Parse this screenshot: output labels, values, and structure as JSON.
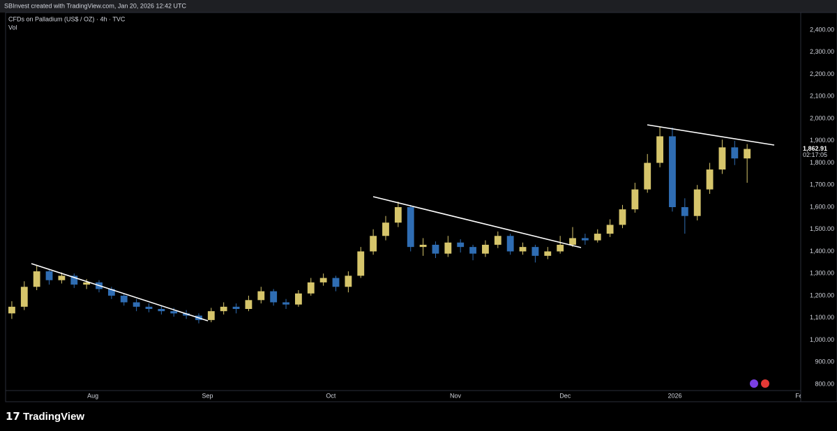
{
  "header": "SBInvest created with TradingView.com, Jan 20, 2026 12:42 UTC",
  "footer": {
    "brand": "TradingView"
  },
  "chart_data": {
    "type": "candlestick",
    "title": "CFDs on Palladium (US$ / OZ) · 4h · TVC",
    "subtitle": "Vol",
    "up_color": "#d6c56b",
    "down_color": "#2f6db3",
    "open": [
      1120,
      1150,
      1240,
      1310,
      1270,
      1290,
      1250,
      1260,
      1230,
      1200,
      1170,
      1150,
      1140,
      1130,
      1120,
      1110,
      1090,
      1130,
      1150,
      1140,
      1180,
      1220,
      1170,
      1160,
      1210,
      1260,
      1280,
      1240,
      1290,
      1400,
      1470,
      1530,
      1600,
      1420,
      1430,
      1390,
      1440,
      1420,
      1390,
      1430,
      1470,
      1400,
      1420,
      1380,
      1400,
      1430,
      1460,
      1450,
      1480,
      1520,
      1590,
      1680,
      1800,
      1920,
      1600,
      1560,
      1680,
      1770,
      1870,
      1820
    ],
    "high": [
      1175,
      1265,
      1340,
      1320,
      1305,
      1300,
      1275,
      1270,
      1240,
      1210,
      1185,
      1165,
      1155,
      1145,
      1135,
      1120,
      1145,
      1170,
      1165,
      1200,
      1240,
      1230,
      1185,
      1225,
      1280,
      1300,
      1290,
      1310,
      1420,
      1500,
      1560,
      1625,
      1610,
      1460,
      1445,
      1470,
      1455,
      1430,
      1450,
      1490,
      1480,
      1440,
      1430,
      1420,
      1470,
      1510,
      1480,
      1500,
      1545,
      1610,
      1710,
      1840,
      1965,
      1960,
      1640,
      1700,
      1800,
      1905,
      1900,
      1885
    ],
    "low": [
      1095,
      1135,
      1225,
      1250,
      1255,
      1235,
      1230,
      1215,
      1185,
      1155,
      1130,
      1125,
      1115,
      1105,
      1095,
      1075,
      1080,
      1115,
      1120,
      1130,
      1165,
      1155,
      1140,
      1150,
      1200,
      1245,
      1220,
      1215,
      1280,
      1385,
      1450,
      1510,
      1400,
      1380,
      1370,
      1375,
      1395,
      1360,
      1375,
      1415,
      1385,
      1385,
      1350,
      1365,
      1390,
      1420,
      1430,
      1440,
      1465,
      1505,
      1575,
      1665,
      1780,
      1580,
      1480,
      1540,
      1660,
      1750,
      1790,
      1710
    ],
    "close": [
      1150,
      1240,
      1310,
      1270,
      1290,
      1250,
      1260,
      1230,
      1200,
      1170,
      1150,
      1140,
      1130,
      1120,
      1110,
      1090,
      1130,
      1150,
      1140,
      1180,
      1220,
      1170,
      1160,
      1210,
      1260,
      1280,
      1240,
      1290,
      1400,
      1470,
      1530,
      1600,
      1420,
      1430,
      1390,
      1440,
      1420,
      1390,
      1430,
      1470,
      1400,
      1420,
      1380,
      1400,
      1430,
      1460,
      1450,
      1480,
      1520,
      1590,
      1680,
      1800,
      1920,
      1600,
      1560,
      1680,
      1770,
      1870,
      1820,
      1862.91
    ],
    "last_price_label": "1,862.91",
    "countdown": "02:17:05",
    "xlim": [
      -0.5,
      63.3
    ],
    "xticks": [
      {
        "value": 6.5,
        "label": "Aug"
      },
      {
        "value": 15.7,
        "label": "Sep"
      },
      {
        "value": 25.6,
        "label": "Oct"
      },
      {
        "value": 35.6,
        "label": "Nov"
      },
      {
        "value": 44.4,
        "label": "Dec"
      },
      {
        "value": 53.2,
        "label": "2026"
      },
      {
        "value": 63.3,
        "label": "Feb"
      }
    ],
    "ylim": [
      721,
      2479
    ],
    "yticks": [
      {
        "value": 800,
        "label": "800.00"
      },
      {
        "value": 900,
        "label": "900.00"
      },
      {
        "value": 1000,
        "label": "1,000.00"
      },
      {
        "value": 1100,
        "label": "1,100.00"
      },
      {
        "value": 1200,
        "label": "1,200.00"
      },
      {
        "value": 1300,
        "label": "1,300.00"
      },
      {
        "value": 1400,
        "label": "1,400.00"
      },
      {
        "value": 1500,
        "label": "1,500.00"
      },
      {
        "value": 1600,
        "label": "1,600.00"
      },
      {
        "value": 1700,
        "label": "1,700.00"
      },
      {
        "value": 1800,
        "label": "1,800.00"
      },
      {
        "value": 1900,
        "label": "1,900.00"
      },
      {
        "value": 2000,
        "label": "2,000.00"
      },
      {
        "value": 2100,
        "label": "2,100.00"
      },
      {
        "value": 2200,
        "label": "2,200.00"
      },
      {
        "value": 2300,
        "label": "2,300.00"
      },
      {
        "value": 2400,
        "label": "2,400.00"
      }
    ],
    "grid": false
  }
}
